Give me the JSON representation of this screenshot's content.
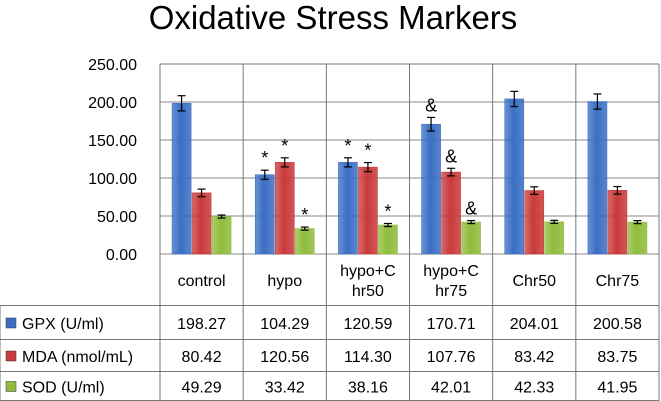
{
  "chart_data": {
    "type": "bar",
    "title": "Oxidative Stress Markers",
    "categories": [
      "control",
      "hypo",
      "hypo+Chr50",
      "hypo+Chr75",
      "Chr50",
      "Chr75"
    ],
    "category_labels": [
      [
        "control"
      ],
      [
        "hypo"
      ],
      [
        "hypo+C",
        "hr50"
      ],
      [
        "hypo+C",
        "hr75"
      ],
      [
        "Chr50"
      ],
      [
        "Chr75"
      ]
    ],
    "series": [
      {
        "name": "GPX (U/ml)",
        "values": [
          198.27,
          104.29,
          120.59,
          170.71,
          204.01,
          200.58
        ],
        "errors": [
          10,
          6,
          6,
          9,
          10,
          10
        ],
        "display": [
          "198.27",
          "104.29",
          "120.59",
          "170.71",
          "204.01",
          "200.58"
        ],
        "color": "#3b6fc4"
      },
      {
        "name": "MDA (nmol/mL)",
        "values": [
          80.42,
          120.56,
          114.3,
          107.76,
          83.42,
          83.75
        ],
        "errors": [
          5,
          6,
          6,
          5,
          5,
          5
        ],
        "display": [
          "80.42",
          "120.56",
          "114.30",
          "107.76",
          "83.42",
          "83.75"
        ],
        "color": "#c93a3a"
      },
      {
        "name": "SOD (U/ml)",
        "values": [
          49.29,
          33.42,
          38.16,
          42.01,
          42.33,
          41.95
        ],
        "errors": [
          2,
          2,
          2,
          2,
          2,
          2
        ],
        "display": [
          "49.29",
          "33.42",
          "38.16",
          "42.01",
          "42.33",
          "41.95"
        ],
        "color": "#8fbc3c"
      }
    ],
    "annotations": [
      {
        "category": 1,
        "series": 0,
        "text": "*"
      },
      {
        "category": 1,
        "series": 1,
        "text": "*"
      },
      {
        "category": 1,
        "series": 2,
        "text": "*"
      },
      {
        "category": 2,
        "series": 0,
        "text": "*"
      },
      {
        "category": 2,
        "series": 1,
        "text": "*"
      },
      {
        "category": 2,
        "series": 2,
        "text": "*"
      },
      {
        "category": 3,
        "series": 0,
        "text": "&"
      },
      {
        "category": 3,
        "series": 1,
        "text": "&"
      },
      {
        "category": 3,
        "series": 2,
        "text": "&"
      }
    ],
    "ylim": [
      0,
      250
    ],
    "yticks": [
      "0.00",
      "50.00",
      "100.00",
      "150.00",
      "200.00",
      "250.00"
    ],
    "grid": true,
    "legend": "data-table-rows"
  }
}
